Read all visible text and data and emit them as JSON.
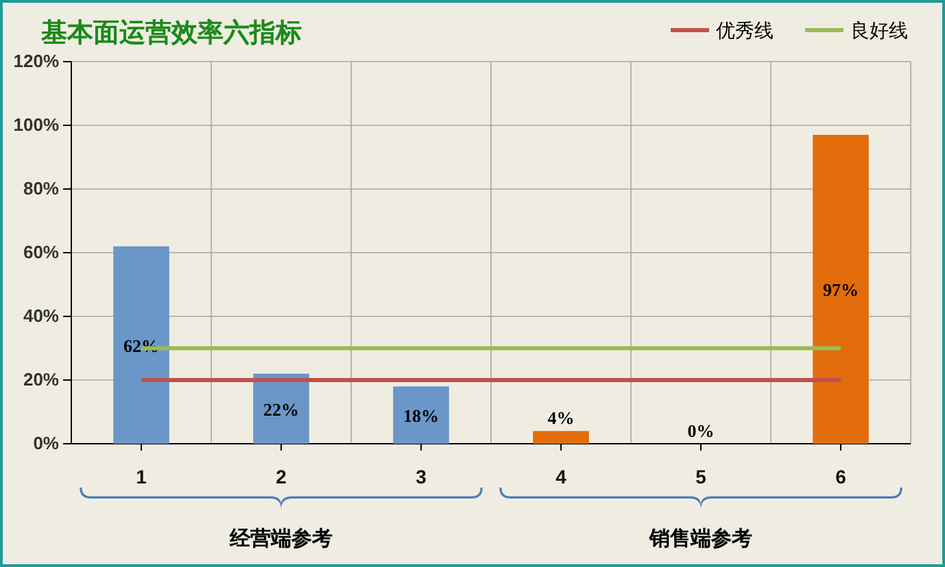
{
  "chart_data": {
    "type": "bar",
    "title": "基本面运营效率六指标",
    "categories": [
      "1",
      "2",
      "3",
      "4",
      "5",
      "6"
    ],
    "series": [
      {
        "colors": [
          "#6a97c8",
          "#6a97c8",
          "#6a97c8",
          "#e36c0a",
          "#e36c0a",
          "#e36c0a"
        ],
        "values": [
          62,
          22,
          18,
          4,
          0,
          97
        ],
        "value_labels": [
          "62%",
          "22%",
          "18%",
          "4%",
          "0%",
          "97%"
        ]
      },
      {
        "type": "line",
        "name": "优秀线",
        "color": "#c0504d",
        "values": [
          20,
          20,
          20,
          20,
          20,
          20
        ]
      },
      {
        "type": "line",
        "name": "良好线",
        "color": "#9bbb59",
        "values": [
          30,
          30,
          30,
          30,
          30,
          30
        ]
      }
    ],
    "ylim": [
      0,
      120
    ],
    "yticks": [
      {
        "value": 0,
        "label": "0%"
      },
      {
        "value": 20,
        "label": "20%"
      },
      {
        "value": 40,
        "label": "40%"
      },
      {
        "value": 60,
        "label": "60%"
      },
      {
        "value": 80,
        "label": "80%"
      },
      {
        "value": 100,
        "label": "100%"
      },
      {
        "value": 120,
        "label": "120%"
      }
    ],
    "grid": true,
    "legend": "top right",
    "annotations": [
      "经营端参考",
      "销售端参考"
    ]
  }
}
